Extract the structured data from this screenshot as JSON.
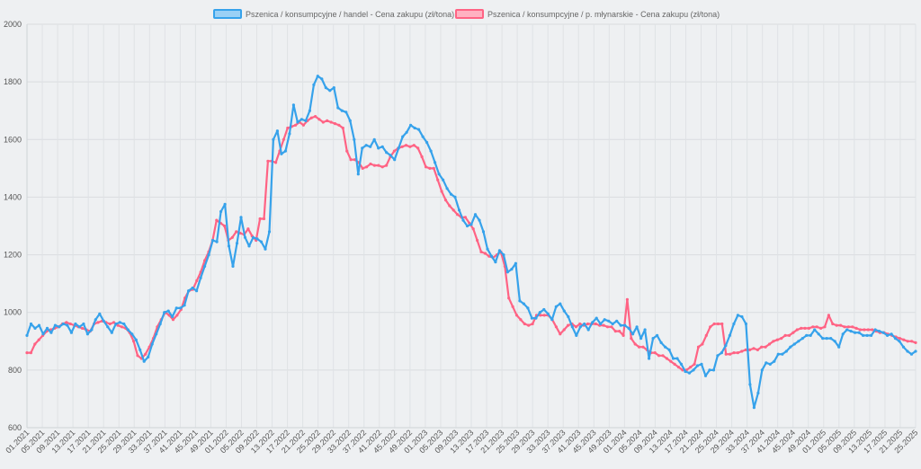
{
  "chart_data": {
    "type": "line",
    "ylim": [
      600,
      2000
    ],
    "yticks": [
      600,
      800,
      1000,
      1200,
      1400,
      1600,
      1800,
      2000
    ],
    "grid": true,
    "legend_position": "top-center",
    "x_tick_labels": [
      "01.2021",
      "05.2021",
      "09.2021",
      "13.2021",
      "17.2021",
      "21.2021",
      "25.2021",
      "29.2021",
      "33.2021",
      "37.2021",
      "41.2021",
      "45.2021",
      "49.2021",
      "01.2022",
      "05.2022",
      "09.2022",
      "13.2022",
      "17.2022",
      "21.2022",
      "25.2022",
      "29.2022",
      "33.2022",
      "37.2022",
      "41.2022",
      "45.2022",
      "49.2022",
      "01.2023",
      "05.2023",
      "09.2023",
      "13.2023",
      "17.2023",
      "21.2023",
      "25.2023",
      "29.2023",
      "33.2023",
      "37.2023",
      "41.2023",
      "45.2023",
      "49.2023",
      "01.2024",
      "05.2024",
      "09.2024",
      "13.2024",
      "17.2024",
      "21.2024",
      "25.2024",
      "29.2024",
      "33.2024",
      "37.2024",
      "41.2024",
      "45.2024",
      "49.2024",
      "01.2025",
      "05.2025",
      "09.2025",
      "13.2025",
      "17.2025",
      "21.2025",
      "25.2025"
    ],
    "series": [
      {
        "name": "Pszenica / konsumpcyjne / handel - Cena zakupu (zł/tona)",
        "color": "#36a2eb",
        "fill": "#9ad0f5",
        "values": [
          920,
          960,
          945,
          955,
          925,
          945,
          930,
          955,
          950,
          960,
          955,
          930,
          960,
          950,
          960,
          925,
          940,
          975,
          995,
          970,
          950,
          930,
          960,
          965,
          960,
          940,
          925,
          905,
          870,
          830,
          845,
          890,
          925,
          960,
          1000,
          1005,
          985,
          1015,
          1015,
          1025,
          1075,
          1085,
          1075,
          1120,
          1160,
          1200,
          1250,
          1245,
          1350,
          1375,
          1230,
          1160,
          1240,
          1330,
          1260,
          1230,
          1260,
          1255,
          1245,
          1220,
          1280,
          1600,
          1630,
          1550,
          1560,
          1620,
          1720,
          1660,
          1670,
          1665,
          1700,
          1790,
          1820,
          1810,
          1780,
          1770,
          1780,
          1710,
          1700,
          1695,
          1665,
          1600,
          1480,
          1570,
          1580,
          1575,
          1600,
          1570,
          1575,
          1555,
          1545,
          1530,
          1570,
          1610,
          1625,
          1650,
          1640,
          1635,
          1610,
          1590,
          1560,
          1520,
          1480,
          1460,
          1430,
          1410,
          1400,
          1355,
          1320,
          1300,
          1305,
          1340,
          1320,
          1280,
          1220,
          1195,
          1175,
          1215,
          1200,
          1140,
          1150,
          1170,
          1040,
          1030,
          1015,
          980,
          980,
          1000,
          1010,
          995,
          975,
          1020,
          1030,
          1005,
          985,
          950,
          920,
          950,
          960,
          940,
          965,
          980,
          960,
          975,
          970,
          960,
          970,
          955,
          955,
          945,
          925,
          950,
          910,
          940,
          840,
          910,
          920,
          895,
          880,
          870,
          840,
          840,
          820,
          795,
          790,
          800,
          815,
          820,
          780,
          800,
          800,
          850,
          860,
          885,
          920,
          960,
          990,
          985,
          960,
          750,
          670,
          720,
          800,
          825,
          820,
          830,
          855,
          855,
          865,
          880,
          890,
          900,
          910,
          920,
          920,
          940,
          925,
          910,
          910,
          910,
          900,
          880,
          925,
          940,
          935,
          930,
          930,
          920,
          920,
          920,
          940,
          935,
          930,
          920,
          925,
          910,
          900,
          880,
          865,
          855,
          865
        ]
      },
      {
        "name": "Pszenica / konsumpcyjne / p. młynarskie - Cena zakupu (zł/tona)",
        "color": "#ff6384",
        "fill": "#ffb1c1",
        "values": [
          860,
          860,
          890,
          905,
          920,
          935,
          940,
          945,
          950,
          960,
          965,
          960,
          955,
          950,
          945,
          940,
          935,
          960,
          965,
          970,
          965,
          960,
          965,
          955,
          950,
          945,
          930,
          900,
          850,
          840,
          855,
          880,
          910,
          950,
          975,
          1000,
          990,
          975,
          990,
          1010,
          1050,
          1075,
          1080,
          1110,
          1140,
          1180,
          1210,
          1250,
          1320,
          1310,
          1300,
          1250,
          1260,
          1280,
          1275,
          1270,
          1290,
          1265,
          1250,
          1325,
          1325,
          1525,
          1525,
          1520,
          1560,
          1600,
          1640,
          1645,
          1650,
          1660,
          1650,
          1665,
          1675,
          1680,
          1670,
          1660,
          1665,
          1660,
          1655,
          1650,
          1640,
          1560,
          1530,
          1530,
          1520,
          1500,
          1505,
          1515,
          1510,
          1510,
          1505,
          1510,
          1540,
          1560,
          1570,
          1575,
          1580,
          1575,
          1580,
          1570,
          1540,
          1505,
          1500,
          1500,
          1460,
          1420,
          1390,
          1370,
          1355,
          1340,
          1330,
          1330,
          1310,
          1290,
          1250,
          1210,
          1205,
          1195,
          1190,
          1200,
          1210,
          1160,
          1050,
          1020,
          990,
          975,
          960,
          955,
          960,
          990,
          990,
          990,
          990,
          975,
          950,
          925,
          940,
          955,
          960,
          950,
          960,
          955,
          960,
          960,
          960,
          955,
          955,
          950,
          950,
          935,
          935,
          920,
          1045,
          910,
          890,
          880,
          880,
          870,
          860,
          860,
          850,
          850,
          840,
          830,
          820,
          810,
          800,
          800,
          810,
          820,
          880,
          890,
          920,
          950,
          960,
          960,
          960,
          855,
          855,
          860,
          860,
          865,
          870,
          870,
          875,
          870,
          880,
          880,
          890,
          900,
          905,
          910,
          920,
          920,
          930,
          940,
          945,
          945,
          945,
          950,
          950,
          945,
          950,
          990,
          960,
          955,
          955,
          950,
          950,
          950,
          945,
          940,
          940,
          940,
          940,
          935,
          930,
          930,
          925,
          920,
          915,
          910,
          905,
          900,
          900,
          895
        ]
      }
    ]
  }
}
